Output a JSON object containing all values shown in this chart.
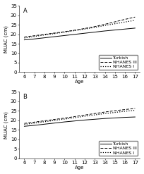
{
  "age": [
    6,
    7,
    8,
    9,
    10,
    11,
    12,
    13,
    14,
    15,
    16,
    17
  ],
  "panel_A": {
    "turkish": [
      17.0,
      17.5,
      18.1,
      18.7,
      19.3,
      19.9,
      20.5,
      21.1,
      21.7,
      22.2,
      22.7,
      23.2
    ],
    "nhanes_III": [
      18.5,
      19.2,
      19.9,
      20.6,
      21.3,
      22.1,
      23.0,
      24.0,
      25.2,
      26.5,
      27.8,
      29.0
    ],
    "nhanes_I": [
      18.0,
      18.8,
      19.6,
      20.3,
      21.1,
      21.9,
      22.7,
      23.6,
      24.6,
      25.5,
      26.4,
      27.3
    ]
  },
  "panel_B": {
    "turkish": [
      16.8,
      17.3,
      17.9,
      18.5,
      19.1,
      19.6,
      20.1,
      20.5,
      20.9,
      21.2,
      21.5,
      21.7
    ],
    "nhanes_III": [
      18.3,
      19.0,
      19.7,
      20.4,
      21.1,
      21.9,
      22.7,
      23.5,
      24.3,
      25.0,
      25.6,
      26.2
    ],
    "nhanes_I": [
      17.8,
      18.5,
      19.2,
      19.9,
      20.6,
      21.3,
      22.1,
      22.8,
      23.5,
      24.1,
      24.7,
      25.2
    ]
  },
  "ylim": [
    0,
    35
  ],
  "yticks": [
    0,
    5,
    10,
    15,
    20,
    25,
    30,
    35
  ],
  "ylabel": "MUAC (cm)",
  "xlabel": "Age",
  "label_turkish": "Turkish",
  "label_nhanes3": "NHANES III",
  "label_nhanes1": "NHANES I",
  "panel_labels": [
    "A",
    "B"
  ],
  "line_color": "black",
  "fontsize": 5,
  "legend_fontsize": 4.5
}
